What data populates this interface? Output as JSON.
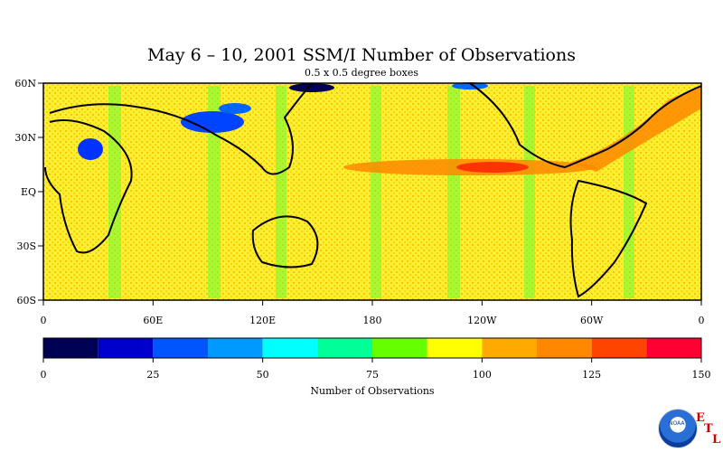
{
  "map": {
    "title": "May 6 – 10, 2001 SSM/I Number of Observations",
    "subtitle": "0.5 x 0.5 degree boxes",
    "lat_labels": [
      "60N",
      "30N",
      "EQ",
      "30S",
      "60S"
    ],
    "lon_labels": [
      "0",
      "60E",
      "120E",
      "180",
      "120W",
      "60W",
      "0"
    ],
    "colorbar": {
      "colors": [
        "#000055",
        "#0000cc",
        "#0055ff",
        "#0099ff",
        "#00ffff",
        "#00ff99",
        "#66ff00",
        "#ffff00",
        "#ffaa00",
        "#ff8800",
        "#ff4400",
        "#ff0033"
      ],
      "tick_labels": [
        "0",
        "25",
        "50",
        "75",
        "100",
        "125",
        "150"
      ],
      "label": "Number of Observations"
    },
    "logo": {
      "text": "NOAA",
      "letters": [
        "E",
        "T",
        "L"
      ]
    },
    "background_color": "#ffee33"
  }
}
